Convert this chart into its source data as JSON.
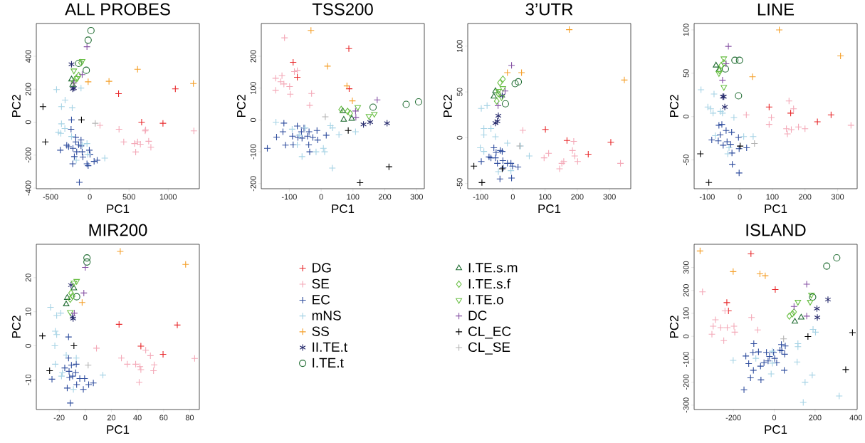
{
  "chart_data": [
    {
      "type": "scatter",
      "title": "ALL PROBES",
      "xlabel": "PC1",
      "ylabel": "PC2",
      "xlim": [
        -682,
        1397
      ],
      "ylim": [
        -404,
        599
      ],
      "xticks": [
        -500,
        0,
        500,
        1000
      ],
      "yticks": [
        -400,
        -200,
        0,
        200,
        400
      ],
      "series": [
        {
          "color": "#e8282b",
          "marker": "cross",
          "x": [
            367,
            661,
            933,
            1091
          ],
          "values": [
            173,
            0,
            -7,
            202
          ]
        },
        {
          "color": "#f4a9b8",
          "marker": "cross",
          "x": [
            130,
            373,
            433,
            585,
            570,
            645,
            712,
            706,
            751,
            779,
            1327,
            609
          ],
          "values": [
            -19,
            -43,
            -120,
            -181,
            -130,
            -134,
            -46,
            -53,
            -116,
            -152,
            -53,
            -120
          ]
        },
        {
          "color": "#2f4d9e",
          "marker": "cross",
          "x": [
            -233,
            -239,
            -376,
            -270,
            -294,
            -179,
            -142,
            -215,
            -167,
            -112,
            -97,
            -6,
            3,
            -88,
            -197,
            -218,
            -36,
            55,
            94,
            -21,
            -133,
            -179,
            -112
          ],
          "values": [
            14,
            -43,
            -170,
            -149,
            -140,
            -120,
            -137,
            -159,
            -180,
            -144,
            -180,
            -170,
            -195,
            -212,
            -209,
            -253,
            -253,
            -238,
            -231,
            -264,
            -365,
            -91,
            -108
          ]
        },
        {
          "color": "#a6d3e5",
          "marker": "cross",
          "x": [
            -424,
            -315,
            -361,
            -224,
            -361,
            -318,
            -400,
            -370,
            -233,
            -112,
            -36,
            -27,
            191,
            -173,
            -97
          ],
          "values": [
            198,
            134,
            94,
            87,
            -10,
            -39,
            -61,
            -68,
            -87,
            207,
            -130,
            -195,
            -218,
            -231,
            -137
          ]
        },
        {
          "color": "#f5a02a",
          "marker": "cross",
          "x": [
            -21,
            245,
            609,
            1321
          ],
          "values": [
            245,
            248,
            321,
            235
          ]
        },
        {
          "color": "#24286b",
          "x": [
            -233,
            -203,
            -218
          ],
          "values": [
            351,
            207,
            202
          ]
        },
        {
          "color": "#1e6b30",
          "marker": "circle",
          "x": [
            15,
            -21,
            -45,
            -142
          ],
          "values": [
            556,
            498,
            315,
            357
          ]
        },
        {
          "color": "#1e6b30",
          "marker": "triangle",
          "x": [
            -233,
            -218
          ],
          "values": [
            260,
            227
          ]
        },
        {
          "color": "#6abf45",
          "marker": "diamond",
          "x": [
            -142,
            -173,
            -203,
            -112
          ],
          "values": [
            284,
            267,
            245,
            361
          ]
        },
        {
          "color": "#6abf45",
          "marker": "triangle_down",
          "x": [
            -97,
            -203,
            -158
          ],
          "values": [
            371,
            313,
            267
          ]
        },
        {
          "color": "#8753a5",
          "marker": "cross",
          "x": [
            -36,
            -97,
            -203
          ],
          "values": [
            458,
            289,
            238
          ]
        },
        {
          "color": "#000000",
          "marker": "cross",
          "x": [
            -597,
            -567,
            -106
          ],
          "values": [
            94,
            -120,
            14
          ]
        },
        {
          "color": "#b3b3b3",
          "marker": "cross",
          "x": [
            70
          ],
          "values": [
            -7
          ]
        }
      ]
    },
    {
      "type": "scatter",
      "title": "TSS200",
      "xlabel": "PC1",
      "ylabel": "PC2",
      "xlim": [
        -188,
        324
      ],
      "ylim": [
        -216,
        303
      ],
      "xticks": [
        -100,
        0,
        100,
        200,
        300
      ],
      "yticks": [
        -200,
        -100,
        0,
        100,
        200
      ],
      "series": [
        {
          "color": "#e8282b",
          "marker": "cross",
          "x": [
            -88,
            -75,
            87,
            88
          ],
          "values": [
            181,
            134,
            224,
            98
          ]
        },
        {
          "color": "#f4a9b8",
          "marker": "cross",
          "x": [
            -115,
            -143,
            -123,
            -127,
            -117,
            -99,
            -143,
            -97,
            -84,
            -75,
            -30,
            -36
          ],
          "values": [
            258,
            131,
            139,
            120,
            113,
            105,
            93,
            81,
            152,
            155,
            83,
            46
          ]
        },
        {
          "color": "#2f4d9e",
          "marker": "cross",
          "x": [
            -169,
            -140,
            -117,
            -120,
            -112,
            -90,
            -75,
            -54,
            -73,
            -60,
            -43,
            -38,
            -26,
            -11,
            -36,
            -39,
            -13,
            16,
            -88,
            -62
          ],
          "values": [
            -89,
            -54,
            -10,
            -37,
            -79,
            -51,
            -19,
            -25,
            -55,
            -57,
            -51,
            -37,
            -55,
            -63,
            -100,
            -78,
            -33,
            -48,
            -78,
            -37
          ]
        },
        {
          "color": "#a6d3e5",
          "marker": "cross",
          "x": [
            -142,
            -91,
            -69,
            -75,
            -60,
            -16,
            7,
            11,
            29,
            36,
            56,
            108,
            35,
            -50
          ],
          "values": [
            -7,
            -29,
            -48,
            -78,
            -115,
            -100,
            -89,
            -100,
            -18,
            -25,
            -46,
            -37,
            -151,
            -25
          ]
        },
        {
          "color": "#f5a02a",
          "marker": "cross",
          "x": [
            -32,
            20,
            81,
            98
          ],
          "values": [
            281,
            169,
            107,
            60
          ]
        },
        {
          "color": "#24286b",
          "x": [
            133,
            154,
            207
          ],
          "values": [
            -14,
            -7,
            -10
          ]
        },
        {
          "color": "#1e6b30",
          "marker": "circle",
          "x": [
            163,
            267,
            306
          ],
          "values": [
            40,
            49,
            57
          ]
        },
        {
          "color": "#1e6b30",
          "marker": "triangle",
          "x": [
            71,
            96,
            68
          ],
          "values": [
            1,
            4,
            28
          ]
        },
        {
          "color": "#6abf45",
          "marker": "diamond",
          "x": [
            63,
            83,
            91
          ],
          "values": [
            33,
            27,
            21
          ]
        },
        {
          "color": "#6abf45",
          "marker": "triangle_down",
          "x": [
            115,
            150,
            167
          ],
          "values": [
            40,
            12,
            19
          ]
        },
        {
          "color": "#8753a5",
          "marker": "cross",
          "x": [
            176,
            108,
            109
          ],
          "values": [
            63,
            28,
            8
          ]
        },
        {
          "color": "#000000",
          "marker": "cross",
          "x": [
            85,
            122,
            213
          ],
          "values": [
            -33,
            -197,
            -147
          ]
        },
        {
          "color": "#b3b3b3",
          "marker": "cross",
          "x": [
            13
          ],
          "values": [
            10
          ]
        }
      ]
    },
    {
      "type": "scatter",
      "title": "3’UTR",
      "xlabel": "PC1",
      "ylabel": "PC2",
      "xlim": [
        -140,
        366
      ],
      "ylim": [
        -55.7,
        124.7
      ],
      "xticks": [
        -100,
        0,
        100,
        200,
        300
      ],
      "yticks": [
        -50,
        0,
        50,
        100
      ],
      "series": [
        {
          "color": "#e8282b",
          "marker": "cross",
          "x": [
            101,
            168,
            234,
            304
          ],
          "values": [
            9,
            -3,
            -18,
            -5
          ]
        },
        {
          "color": "#f4a9b8",
          "marker": "cross",
          "x": [
            31,
            97,
            111,
            145,
            152,
            158,
            189,
            185,
            192,
            201,
            334
          ],
          "values": [
            8,
            -22,
            -17,
            -34,
            -28,
            -26,
            -4,
            -14,
            -20,
            -26,
            -28
          ]
        },
        {
          "color": "#2f4d9e",
          "marker": "cross",
          "x": [
            -98,
            -74,
            -59,
            -52,
            -48,
            -39,
            -33,
            -31,
            -17,
            -6,
            -1,
            16,
            -40,
            -4,
            -54,
            -30,
            -68
          ],
          "values": [
            -26,
            -21,
            -11,
            -16,
            -28,
            -14,
            -15,
            -25,
            -28,
            -28,
            -31,
            -32,
            -45,
            -44,
            -22,
            -33,
            -22
          ]
        },
        {
          "color": "#a6d3e5",
          "marker": "cross",
          "x": [
            -98,
            -80,
            -90,
            -90,
            -68,
            -54,
            -101,
            -90,
            -17,
            51,
            -45,
            -6,
            24
          ],
          "values": [
            32,
            35,
            10,
            3,
            10,
            1,
            -11,
            -15,
            -6,
            -20,
            -37,
            -36,
            -9
          ]
        },
        {
          "color": "#f5a02a",
          "marker": "cross",
          "x": [
            175,
            -17,
            27,
            346
          ],
          "values": [
            118,
            71,
            71,
            63
          ]
        },
        {
          "color": "#24286b",
          "x": [
            -45,
            -48,
            -54,
            -33
          ],
          "values": [
            24,
            18,
            16,
            46
          ]
        },
        {
          "color": "#1e6b30",
          "marker": "circle",
          "x": [
            7,
            17,
            -23
          ],
          "values": [
            59,
            61,
            37
          ]
        },
        {
          "color": "#1e6b30",
          "marker": "triangle",
          "x": [
            -59,
            -54
          ],
          "values": [
            45,
            51
          ]
        },
        {
          "color": "#6abf45",
          "marker": "diamond",
          "x": [
            -40,
            -31,
            -50,
            -45
          ],
          "values": [
            60,
            64,
            40,
            48
          ]
        },
        {
          "color": "#6abf45",
          "marker": "triangle_down",
          "x": [
            -31,
            -45,
            -35
          ],
          "values": [
            54,
            51,
            44
          ]
        },
        {
          "color": "#8753a5",
          "marker": "cross",
          "x": [
            -4,
            -46,
            -24
          ],
          "values": [
            79,
            35,
            51
          ]
        },
        {
          "color": "#000000",
          "marker": "cross",
          "x": [
            -121,
            -96,
            -33
          ],
          "values": [
            -31,
            -49,
            -34
          ]
        },
        {
          "color": "#b3b3b3",
          "marker": "cross",
          "x": [
            21
          ],
          "values": [
            -9
          ]
        }
      ]
    },
    {
      "type": "scatter",
      "title": "LINE",
      "xlabel": "PC1",
      "ylabel": "PC2",
      "xlim": [
        -140,
        360
      ],
      "ylim": [
        -83.2,
        107.4
      ],
      "xticks": [
        -100,
        0,
        100,
        200,
        300
      ],
      "yticks": [
        -50,
        0,
        50,
        100
      ],
      "series": [
        {
          "color": "#e8282b",
          "marker": "cross",
          "x": [
            90,
            156,
            238,
            280
          ],
          "values": [
            11,
            4,
            -6,
            2
          ]
        },
        {
          "color": "#f4a9b8",
          "marker": "cross",
          "x": [
            20,
            97,
            90,
            151,
            165,
            143,
            146,
            158,
            180,
            200,
            341
          ],
          "values": [
            2,
            -1,
            -9,
            18,
            9,
            -14,
            -20,
            -15,
            -12,
            -14,
            -10
          ]
        },
        {
          "color": "#2f4d9e",
          "marker": "cross",
          "x": [
            -86,
            -64,
            -55,
            -60,
            -42,
            -25,
            -39,
            -51,
            -28,
            -4,
            -2,
            21,
            -24,
            -23,
            -2,
            -66
          ],
          "values": [
            -27,
            -10,
            -9,
            -21,
            -16,
            -18,
            -29,
            -33,
            -32,
            -24,
            -37,
            -36,
            -42,
            -55,
            -65,
            -28
          ]
        },
        {
          "color": "#a6d3e5",
          "marker": "cross",
          "x": [
            -119,
            -79,
            -98,
            -89,
            -82,
            -59,
            -53,
            -18,
            -75,
            12,
            41,
            -37,
            -33
          ],
          "values": [
            31,
            26,
            11,
            9,
            4,
            6,
            4,
            -1,
            -22,
            -23,
            -23,
            -43,
            -36
          ]
        },
        {
          "color": "#f5a02a",
          "marker": "cross",
          "x": [
            121,
            39,
            309
          ],
          "values": [
            100,
            46,
            70
          ]
        },
        {
          "color": "#24286b",
          "x": [
            -49,
            -46,
            -52
          ],
          "values": [
            23,
            11,
            23
          ]
        },
        {
          "color": "#1e6b30",
          "marker": "circle",
          "x": [
            -15,
            -1,
            -4,
            -44
          ],
          "values": [
            65,
            65,
            24,
            55
          ]
        },
        {
          "color": "#1e6b30",
          "marker": "triangle",
          "x": [
            -73,
            -64
          ],
          "values": [
            59,
            54
          ]
        },
        {
          "color": "#6abf45",
          "marker": "diamond",
          "x": [
            -57,
            -49,
            -62
          ],
          "values": [
            59,
            62,
            53
          ]
        },
        {
          "color": "#6abf45",
          "marker": "triangle_down",
          "x": [
            -49,
            -64,
            -49
          ],
          "values": [
            67,
            50,
            34
          ]
        },
        {
          "color": "#8753a5",
          "marker": "cross",
          "x": [
            -35,
            -53,
            -42
          ],
          "values": [
            81,
            42,
            61
          ]
        },
        {
          "color": "#000000",
          "marker": "cross",
          "x": [
            -121,
            -95,
            1
          ],
          "values": [
            -43,
            -76,
            -34
          ]
        },
        {
          "color": "#b3b3b3",
          "marker": "cross",
          "x": [
            45
          ],
          "values": [
            -31
          ]
        }
      ]
    },
    {
      "type": "scatter",
      "title": "MIR200",
      "xlabel": "PC1",
      "ylabel": "PC2",
      "xlim": [
        -37.5,
        87.4
      ],
      "ylim": [
        -18.7,
        29.8
      ],
      "xticks": [
        -20,
        0,
        20,
        40,
        60,
        80
      ],
      "yticks": [
        -10,
        0,
        10,
        20
      ],
      "legend": "right",
      "series": [
        {
          "name": "DG",
          "color": "#e8282b",
          "marker": "cross",
          "x": [
            25.9,
            42.6,
            59.6,
            70.5
          ],
          "values": [
            6.3,
            -0.1,
            -2.5,
            6.1
          ]
        },
        {
          "name": "SE",
          "color": "#f4a9b8",
          "marker": "cross",
          "x": [
            8.6,
            27.7,
            32.2,
            38.6,
            41.9,
            42.6,
            46.3,
            49.9,
            52.8,
            52.3,
            41.3,
            83.8
          ],
          "values": [
            -0.7,
            -3.6,
            -5.4,
            -5.4,
            -6.1,
            -7.0,
            -1.3,
            -2.9,
            -5.6,
            -7.3,
            -10.7,
            -3.7
          ]
        },
        {
          "name": "EC",
          "color": "#2f4d9e",
          "marker": "cross",
          "x": [
            -25.5,
            -12.8,
            -12.8,
            -15.7,
            -12.4,
            -10.6,
            -6.9,
            -12,
            -7.3,
            -4.2,
            -0.5,
            2.6,
            6.2,
            -1.5,
            -13.8,
            -11.5,
            -6.6,
            -9.7
          ],
          "values": [
            -9.8,
            2.6,
            -3.6,
            -6.5,
            -7.5,
            -5.7,
            -5.4,
            -9.3,
            -7.9,
            -9.6,
            -9.6,
            -11.4,
            -10.9,
            -12.8,
            -12.4,
            -16.8,
            -11.4,
            -8.9
          ]
        },
        {
          "name": "mNS",
          "color": "#a6d3e5",
          "marker": "cross",
          "x": [
            -26.6,
            -21.9,
            -18.8,
            -23,
            -21.9,
            -23.3,
            -23,
            -17.5,
            -14.6,
            -6.9,
            -9.1,
            13.5,
            -18.2
          ],
          "values": [
            11.3,
            8.9,
            9.6,
            4.3,
            3.3,
            0,
            -5.4,
            -7.9,
            -2.7,
            -3.6,
            -12.8,
            -8.6,
            -8.9
          ]
        },
        {
          "name": "SS",
          "color": "#f5a02a",
          "marker": "cross",
          "x": [
            26.8,
            76.9,
            -2.4
          ],
          "values": [
            27.7,
            23.9,
            12.7
          ]
        },
        {
          "name": "II.TE.t",
          "color": "#24286b",
          "x": [
            -10.9,
            -9.7,
            -9.3
          ],
          "values": [
            17.8,
            8.5,
            8.0
          ]
        },
        {
          "name": "I.TE.t",
          "color": "#1e6b30",
          "marker": "circle",
          "x": [
            1.3,
            1.3,
            -6.6
          ],
          "values": [
            25.8,
            24.6,
            14.4
          ]
        },
        {
          "name": "I.TE.s.m",
          "color": "#1e6b30",
          "marker": "triangle",
          "x": [
            -13.8,
            -14.6,
            -8.7
          ],
          "values": [
            14.1,
            12.2,
            16.9
          ]
        },
        {
          "name": "I.TE.s.f",
          "color": "#6abf45",
          "marker": "diamond",
          "x": [
            -10.9,
            -11.5,
            -9.7
          ],
          "values": [
            15.5,
            13.7,
            14.6
          ]
        },
        {
          "name": "I.TE.o",
          "color": "#6abf45",
          "marker": "triangle_down",
          "x": [
            -6.6,
            -8.7,
            -11.5
          ],
          "values": [
            19.0,
            18.5,
            9.9
          ]
        },
        {
          "name": "DC",
          "color": "#8753a5",
          "marker": "cross",
          "x": [
            0,
            -1.1,
            -8.4
          ],
          "values": [
            23.0,
            15.5,
            9.6
          ]
        },
        {
          "name": "CL_EC",
          "color": "#000000",
          "marker": "cross",
          "x": [
            -32.8,
            -27.3,
            -8.7
          ],
          "values": [
            2.9,
            -7.3,
            0
          ]
        },
        {
          "name": "CL_SE",
          "color": "#b3b3b3",
          "marker": "cross",
          "x": [
            2.2
          ],
          "values": [
            -5.7
          ]
        }
      ]
    },
    {
      "type": "scatter",
      "title": "ISLAND",
      "xlabel": "PC1",
      "ylabel": "PC2",
      "xlim": [
        -392,
        406
      ],
      "ylim": [
        -319,
        401
      ],
      "xticks": [
        -200,
        0,
        200,
        400
      ],
      "yticks": [
        -300,
        -200,
        -100,
        0,
        100,
        200,
        300
      ],
      "series": [
        {
          "color": "#e8282b",
          "marker": "cross",
          "x": [
            -114,
            5,
            -232,
            -224
          ],
          "values": [
            360,
            204,
            147,
            111
          ]
        },
        {
          "color": "#f4a9b8",
          "marker": "cross",
          "x": [
            -351,
            -288,
            -299,
            -305,
            -262,
            -230,
            -241,
            -197,
            -193,
            -247,
            -111,
            -81
          ],
          "values": [
            194,
            72,
            44,
            9,
            38,
            38,
            111,
            44,
            18,
            -19,
            82,
            28
          ]
        },
        {
          "color": "#2f4d9e",
          "marker": "cross",
          "x": [
            -148,
            -139,
            -125,
            -100,
            -104,
            -116,
            -102,
            -67,
            -65,
            -77,
            -38,
            -50,
            -30,
            -23,
            -3,
            2,
            12,
            28,
            37,
            54,
            51,
            49,
            35
          ],
          "values": [
            -233,
            -86,
            -119,
            -32,
            -70,
            -181,
            -148,
            -130,
            -190,
            -68,
            -70,
            -115,
            -107,
            -88,
            -70,
            -96,
            -115,
            -60,
            -63,
            -42,
            -78,
            -148,
            -36
          ]
        },
        {
          "color": "#a6d3e5",
          "marker": "cross",
          "x": [
            -201,
            116,
            116,
            112,
            151,
            142,
            186,
            190,
            202,
            318,
            -15,
            -9,
            -9,
            -90
          ],
          "values": [
            -105,
            -32,
            -45,
            -112,
            -200,
            -288,
            -169,
            30,
            18,
            -260,
            -164,
            -117,
            -65,
            -96
          ]
        },
        {
          "color": "#f5a02a",
          "marker": "cross",
          "x": [
            -363,
            -201,
            -70,
            -44
          ],
          "values": [
            372,
            282,
            272,
            264
          ]
        },
        {
          "color": "#24286b",
          "x": [
            209,
            211,
            263
          ],
          "values": [
            121,
            82,
            160
          ]
        },
        {
          "color": "#1e6b30",
          "marker": "circle",
          "x": [
            257,
            306,
            188
          ],
          "values": [
            306,
            342,
            171
          ]
        },
        {
          "color": "#1e6b30",
          "marker": "triangle",
          "x": [
            101,
            132
          ],
          "values": [
            64,
            82
          ]
        },
        {
          "color": "#6abf45",
          "marker": "diamond",
          "x": [
            74,
            89,
            97
          ],
          "values": [
            88,
            98,
            106
          ]
        },
        {
          "color": "#6abf45",
          "marker": "triangle_down",
          "x": [
            116,
            182,
            176
          ],
          "values": [
            150,
            181,
            150
          ]
        },
        {
          "color": "#8753a5",
          "marker": "cross",
          "x": [
            159,
            97,
            159
          ],
          "values": [
            227,
            130,
            88
          ]
        },
        {
          "color": "#000000",
          "marker": "cross",
          "x": [
            165,
            383,
            350
          ],
          "values": [
            -1,
            16,
            -145
          ]
        },
        {
          "color": "#b3b3b3",
          "marker": "cross",
          "x": [
            46
          ],
          "values": [
            -11
          ]
        }
      ]
    }
  ]
}
